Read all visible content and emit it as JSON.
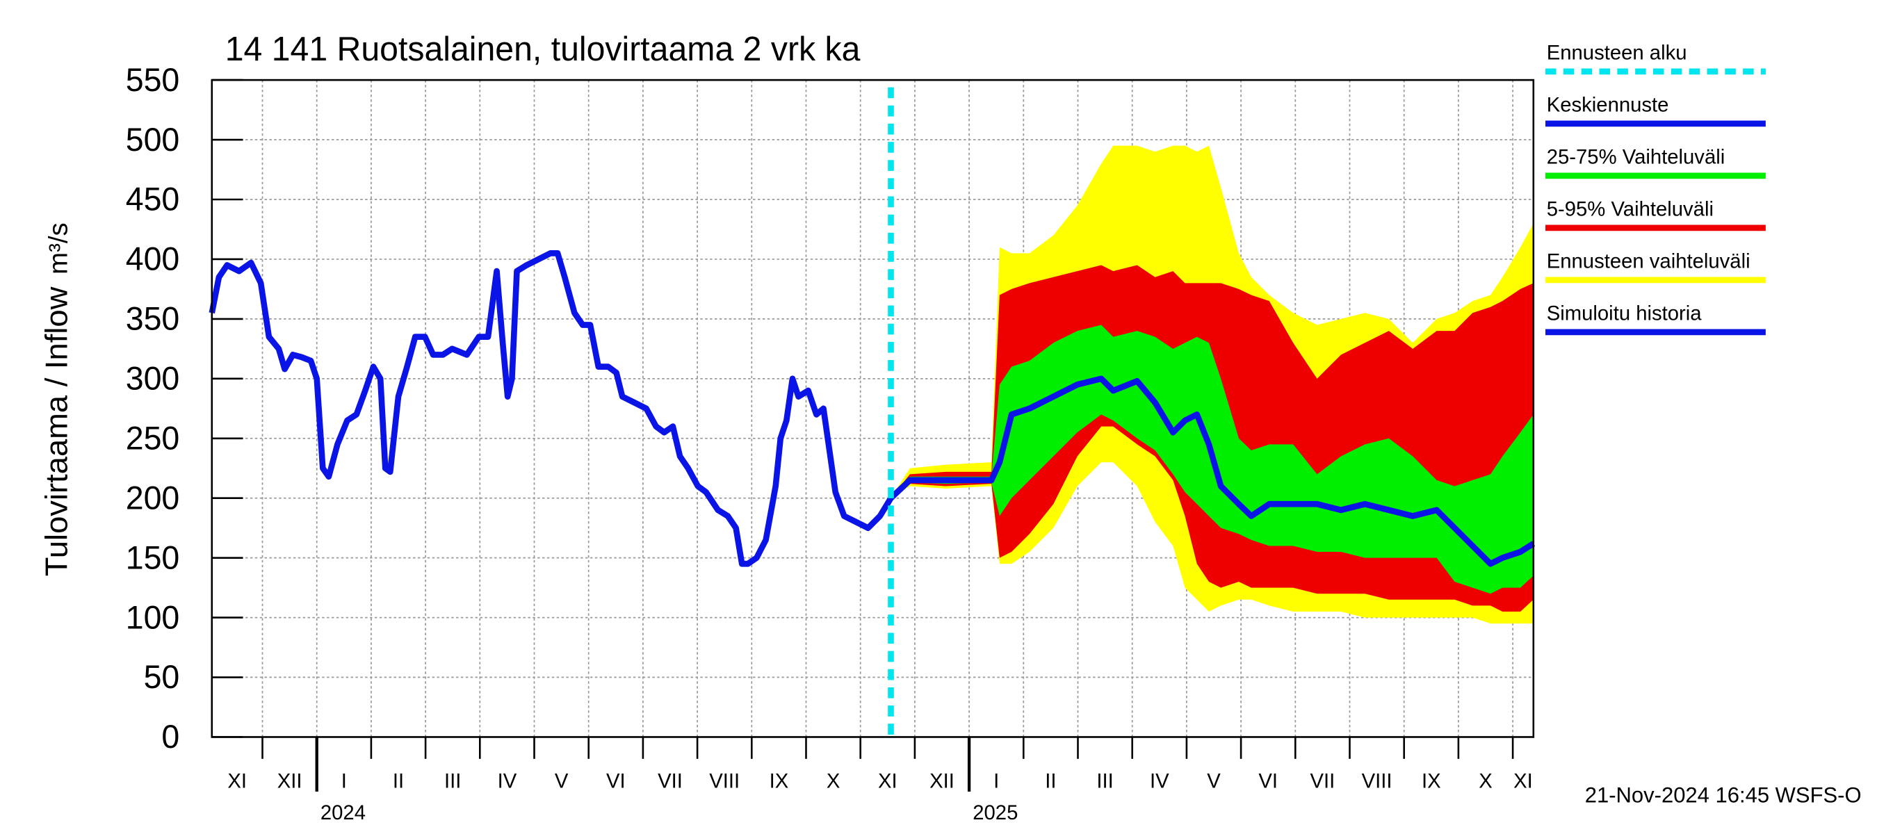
{
  "chart_data": {
    "type": "line",
    "title": "14 141 Ruotsalainen, tulovirtaama 2 vrk ka",
    "y_label": "Tulovirtaama / Inflow",
    "y_unit": "m³/s",
    "footer": "21-Nov-2024 16:45 WSFS-O",
    "xlim": [
      0.07,
      24.38
    ],
    "ylim": [
      0,
      550
    ],
    "yticks": [
      0,
      50,
      100,
      150,
      200,
      250,
      300,
      350,
      400,
      450,
      500,
      550
    ],
    "grid": true,
    "xticks": [
      {
        "value": 0,
        "label": "XI"
      },
      {
        "value": 1,
        "label": "XII"
      },
      {
        "value": 2,
        "label": "I"
      },
      {
        "value": 3,
        "label": "II"
      },
      {
        "value": 4,
        "label": "III"
      },
      {
        "value": 5,
        "label": "IV"
      },
      {
        "value": 6,
        "label": "V"
      },
      {
        "value": 7,
        "label": "VI"
      },
      {
        "value": 8,
        "label": "VII"
      },
      {
        "value": 9,
        "label": "VIII"
      },
      {
        "value": 10,
        "label": "IX"
      },
      {
        "value": 11,
        "label": "X"
      },
      {
        "value": 12,
        "label": "XI"
      },
      {
        "value": 13,
        "label": "XII"
      },
      {
        "value": 14,
        "label": "I"
      },
      {
        "value": 15,
        "label": "II"
      },
      {
        "value": 16,
        "label": "III"
      },
      {
        "value": 17,
        "label": "IV"
      },
      {
        "value": 18,
        "label": "V"
      },
      {
        "value": 19,
        "label": "VI"
      },
      {
        "value": 20,
        "label": "VII"
      },
      {
        "value": 21,
        "label": "VIII"
      },
      {
        "value": 22,
        "label": "IX"
      },
      {
        "value": 23,
        "label": "X"
      },
      {
        "value": 24,
        "label": "XI"
      }
    ],
    "year_ticks": [
      {
        "value": 2,
        "label": "2024"
      },
      {
        "value": 14,
        "label": "2025"
      }
    ],
    "forecast_start": {
      "name": "Ennusteen alku",
      "color": "#00e5ee",
      "x": 12.56
    },
    "series": [
      {
        "name": "Simuloitu historia",
        "color": "#0a14e6",
        "x": [
          0.07,
          0.2,
          0.35,
          0.57,
          0.79,
          0.97,
          1.12,
          1.3,
          1.41,
          1.56,
          1.72,
          1.89,
          2.0,
          2.11,
          2.22,
          2.38,
          2.56,
          2.73,
          2.89,
          3.04,
          3.17,
          3.26,
          3.35,
          3.5,
          3.66,
          3.81,
          3.99,
          4.14,
          4.32,
          4.49,
          4.76,
          4.98,
          5.15,
          5.31,
          5.42,
          5.51,
          5.59,
          5.68,
          5.86,
          6.08,
          6.3,
          6.43,
          6.56,
          6.74,
          6.89,
          7.03,
          7.18,
          7.36,
          7.51,
          7.62,
          7.84,
          8.06,
          8.24,
          8.39,
          8.55,
          8.68,
          8.83,
          9.01,
          9.16,
          9.38,
          9.56,
          9.71,
          9.82,
          9.93,
          10.09,
          10.26,
          10.44,
          10.53,
          10.64,
          10.75,
          10.86,
          11.04,
          11.19,
          11.32,
          11.43,
          11.54,
          11.7,
          11.92,
          12.14,
          12.36,
          12.56
        ],
        "values": [
          355,
          385,
          395,
          390,
          397,
          380,
          335,
          325,
          308,
          320,
          318,
          315,
          300,
          225,
          218,
          245,
          265,
          270,
          290,
          310,
          300,
          225,
          222,
          285,
          310,
          335,
          335,
          320,
          320,
          325,
          320,
          335,
          335,
          390,
          330,
          285,
          300,
          390,
          395,
          400,
          405,
          405,
          385,
          355,
          345,
          345,
          310,
          310,
          305,
          285,
          280,
          275,
          260,
          255,
          260,
          235,
          225,
          210,
          205,
          190,
          185,
          175,
          145,
          145,
          150,
          165,
          210,
          250,
          265,
          300,
          285,
          290,
          270,
          275,
          240,
          205,
          185,
          180,
          175,
          185,
          200
        ]
      },
      {
        "name": "Keskiennuste",
        "color": "#0a14e6",
        "x": [
          12.56,
          12.91,
          13.57,
          14.41,
          14.56,
          14.78,
          15.11,
          15.55,
          15.99,
          16.43,
          16.65,
          17.09,
          17.42,
          17.75,
          17.97,
          18.19,
          18.41,
          18.63,
          18.96,
          19.19,
          19.52,
          19.96,
          20.4,
          20.84,
          21.28,
          21.72,
          22.16,
          22.6,
          22.93,
          23.26,
          23.59,
          23.81,
          24.14,
          24.38
        ],
        "values": [
          200,
          215,
          215,
          215,
          230,
          270,
          275,
          285,
          295,
          300,
          290,
          298,
          280,
          255,
          265,
          270,
          245,
          210,
          195,
          185,
          195,
          195,
          195,
          190,
          195,
          190,
          185,
          190,
          175,
          160,
          145,
          150,
          155,
          162
        ]
      }
    ],
    "bands": [
      {
        "name": "25-75% Vaihteluväli",
        "color": "#00ee00",
        "x": [
          12.56,
          12.91,
          13.57,
          14.41,
          14.56,
          14.78,
          15.11,
          15.55,
          15.99,
          16.43,
          16.65,
          17.09,
          17.42,
          17.75,
          17.97,
          18.19,
          18.41,
          18.63,
          18.96,
          19.19,
          19.52,
          19.96,
          20.4,
          20.84,
          21.28,
          21.72,
          22.16,
          22.6,
          22.93,
          23.26,
          23.59,
          23.81,
          24.14,
          24.38
        ],
        "lower": [
          200,
          213,
          212,
          213,
          185,
          200,
          215,
          235,
          255,
          270,
          265,
          250,
          240,
          220,
          205,
          195,
          185,
          175,
          170,
          165,
          160,
          160,
          155,
          155,
          150,
          150,
          150,
          150,
          130,
          125,
          120,
          125,
          125,
          135
        ],
        "upper": [
          200,
          218,
          218,
          218,
          295,
          310,
          315,
          330,
          340,
          345,
          335,
          340,
          335,
          325,
          330,
          335,
          330,
          300,
          250,
          240,
          245,
          245,
          220,
          235,
          245,
          250,
          235,
          215,
          210,
          215,
          220,
          235,
          255,
          270
        ]
      },
      {
        "name": "5-95% Vaihteluväli",
        "color": "#ee0000",
        "x": [
          12.56,
          12.91,
          13.57,
          14.41,
          14.56,
          14.78,
          15.11,
          15.55,
          15.99,
          16.43,
          16.65,
          17.09,
          17.42,
          17.75,
          17.97,
          18.19,
          18.41,
          18.63,
          18.96,
          19.19,
          19.52,
          19.96,
          20.4,
          20.84,
          21.28,
          21.72,
          22.16,
          22.6,
          22.93,
          23.26,
          23.59,
          23.81,
          24.14,
          24.38
        ],
        "lower": [
          200,
          212,
          210,
          212,
          150,
          155,
          170,
          195,
          235,
          260,
          260,
          245,
          235,
          215,
          185,
          145,
          130,
          125,
          130,
          125,
          125,
          125,
          120,
          120,
          120,
          115,
          115,
          115,
          115,
          110,
          110,
          105,
          105,
          115
        ],
        "upper": [
          200,
          220,
          222,
          222,
          370,
          375,
          380,
          385,
          390,
          395,
          390,
          395,
          385,
          390,
          380,
          380,
          380,
          380,
          375,
          370,
          365,
          330,
          300,
          320,
          330,
          340,
          325,
          340,
          340,
          355,
          360,
          365,
          375,
          380
        ]
      },
      {
        "name": "Ennusteen vaihteluväli",
        "color": "#ffff00",
        "x": [
          12.56,
          12.91,
          13.57,
          14.41,
          14.56,
          14.78,
          15.11,
          15.55,
          15.99,
          16.43,
          16.65,
          17.09,
          17.42,
          17.75,
          17.97,
          18.19,
          18.41,
          18.63,
          18.96,
          19.19,
          19.52,
          19.96,
          20.4,
          20.84,
          21.28,
          21.72,
          22.16,
          22.6,
          22.93,
          23.26,
          23.59,
          23.81,
          24.14,
          24.38
        ],
        "lower": [
          200,
          210,
          208,
          210,
          145,
          145,
          155,
          175,
          210,
          230,
          230,
          210,
          180,
          160,
          125,
          115,
          105,
          110,
          115,
          115,
          110,
          105,
          105,
          105,
          100,
          100,
          100,
          100,
          100,
          100,
          95,
          95,
          95,
          95
        ],
        "upper": [
          200,
          225,
          228,
          230,
          410,
          405,
          405,
          420,
          445,
          480,
          495,
          495,
          490,
          495,
          495,
          490,
          495,
          460,
          405,
          385,
          370,
          355,
          345,
          350,
          355,
          350,
          330,
          350,
          355,
          365,
          370,
          385,
          410,
          430
        ]
      }
    ]
  }
}
